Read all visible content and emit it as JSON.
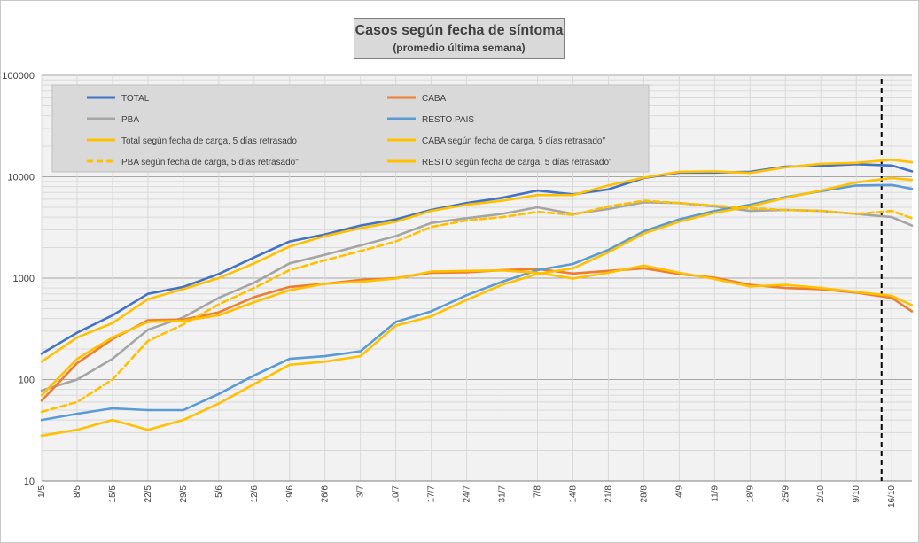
{
  "chart_data": {
    "type": "line",
    "title": "Casos según fecha de síntoma",
    "subtitle": "(promedio última semana)",
    "xlabel": "",
    "ylabel": "",
    "yscale": "log",
    "ylim": [
      10,
      100000
    ],
    "y_ticks": [
      "10",
      "100",
      "1000",
      "10000",
      "100000"
    ],
    "x_ticks": [
      "1/5",
      "8/5",
      "15/5",
      "22/5",
      "29/5",
      "5/6",
      "12/6",
      "19/6",
      "26/6",
      "3/7",
      "10/7",
      "17/7",
      "24/7",
      "31/7",
      "7/8",
      "14/8",
      "21/8",
      "28/8",
      "4/9",
      "11/9",
      "18/9",
      "25/9",
      "2/10",
      "9/10",
      "16/10"
    ],
    "grid": true,
    "legend_position": "top-left",
    "vertical_marker_date": "14/10",
    "x_days": [
      0,
      7,
      14,
      21,
      28,
      35,
      42,
      49,
      56,
      63,
      70,
      77,
      84,
      91,
      98,
      105,
      112,
      119,
      126,
      133,
      140,
      147,
      154,
      161,
      168,
      172
    ],
    "series": [
      {
        "name": "TOTAL",
        "color": "#4472c4",
        "dash": false,
        "values": [
          180,
          290,
          430,
          700,
          820,
          1100,
          1600,
          2300,
          2700,
          3300,
          3800,
          4700,
          5500,
          6200,
          7300,
          6700,
          7500,
          9700,
          11000,
          11000,
          11200,
          12600,
          12800,
          13300,
          12900,
          11300
        ]
      },
      {
        "name": "CABA",
        "color": "#ed7d31",
        "dash": false,
        "values": [
          62,
          145,
          250,
          385,
          390,
          460,
          650,
          820,
          880,
          960,
          1000,
          1130,
          1140,
          1200,
          1230,
          1110,
          1180,
          1250,
          1100,
          1010,
          860,
          800,
          780,
          720,
          640,
          470
        ]
      },
      {
        "name": "PBA",
        "color": "#a5a5a5",
        "dash": false,
        "values": [
          78,
          100,
          160,
          310,
          410,
          640,
          900,
          1400,
          1700,
          2100,
          2600,
          3500,
          3900,
          4300,
          5000,
          4300,
          4800,
          5600,
          5500,
          5100,
          4600,
          4700,
          4600,
          4300,
          4000,
          3300
        ]
      },
      {
        "name": "RESTO PAIS",
        "color": "#5b9bd5",
        "dash": false,
        "values": [
          40,
          46,
          52,
          50,
          50,
          72,
          110,
          160,
          170,
          190,
          370,
          470,
          680,
          920,
          1200,
          1380,
          1900,
          2900,
          3800,
          4600,
          5300,
          6300,
          7200,
          8200,
          8300,
          7600
        ]
      },
      {
        "name": "Total según fecha de carga, 5 días retrasado",
        "color": "#ffc000",
        "dash": false,
        "values": [
          150,
          260,
          360,
          620,
          780,
          1000,
          1400,
          2050,
          2600,
          3100,
          3600,
          4600,
          5300,
          5800,
          6600,
          6600,
          8200,
          9800,
          11200,
          11300,
          10900,
          12400,
          13400,
          13700,
          14700,
          13900
        ]
      },
      {
        "name": "CABA según fecha de carga, 5 días retrasado\"",
        "color": "#ffc000",
        "dash": false,
        "values": [
          70,
          160,
          260,
          370,
          380,
          430,
          580,
          760,
          880,
          920,
          990,
          1160,
          1180,
          1190,
          1130,
          990,
          1130,
          1330,
          1130,
          980,
          830,
          860,
          800,
          730,
          670,
          540
        ]
      },
      {
        "name": "PBA según fecha de carga, 5 días retrasado\"",
        "color": "#ffc000",
        "dash": true,
        "values": [
          48,
          60,
          100,
          240,
          350,
          550,
          800,
          1200,
          1500,
          1850,
          2300,
          3200,
          3700,
          4000,
          4500,
          4200,
          5100,
          5800,
          5500,
          5200,
          4900,
          4700,
          4600,
          4300,
          4600,
          3900
        ]
      },
      {
        "name": "RESTO según fecha de carga, 5 días retrasado\"",
        "color": "#ffc000",
        "dash": false,
        "values": [
          28,
          32,
          40,
          32,
          40,
          58,
          90,
          140,
          150,
          170,
          340,
          420,
          610,
          860,
          1100,
          1250,
          1800,
          2750,
          3600,
          4400,
          5100,
          6200,
          7300,
          8800,
          9700,
          9300
        ]
      }
    ]
  }
}
